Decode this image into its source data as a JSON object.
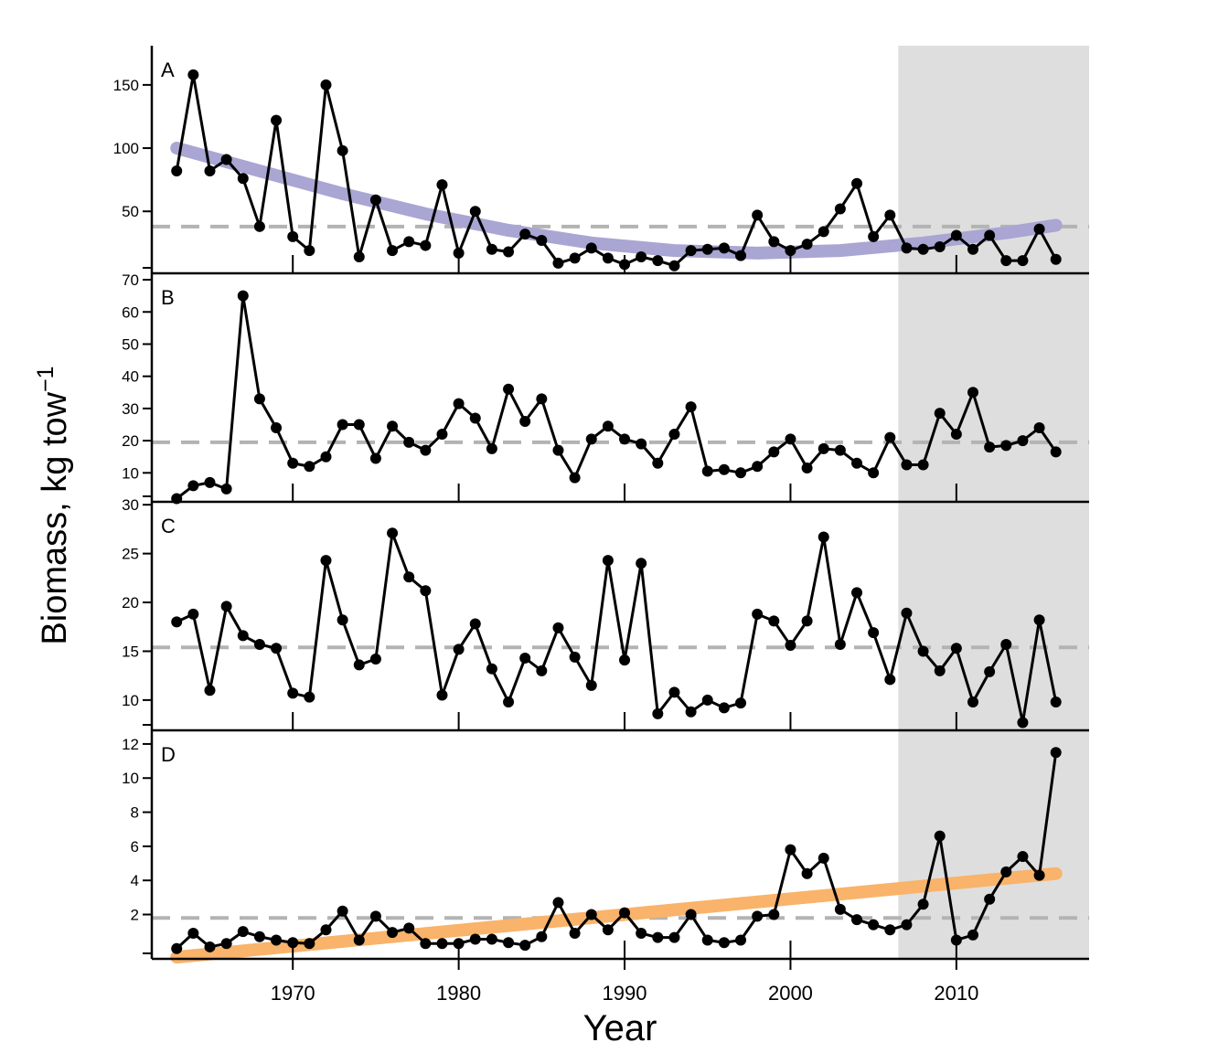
{
  "chart_data": {
    "type": "line",
    "xlabel": "Year",
    "ylabel": "Biomass, kg tow",
    "ylabel_superscript": "−1",
    "xlim": [
      1961.5,
      2018
    ],
    "x_ticks": [
      1970,
      1980,
      1990,
      2000,
      2010
    ],
    "shaded_region": {
      "x_start": 2006.5,
      "x_end": 2018,
      "color": "#dedede"
    },
    "colors": {
      "series": "#000000",
      "reference_line": "#b3b3b3",
      "trend_A": "#a9a6d3",
      "trend_D": "#f9b36a"
    },
    "grid": false,
    "years": [
      1963,
      1964,
      1965,
      1966,
      1967,
      1968,
      1969,
      1970,
      1971,
      1972,
      1973,
      1974,
      1975,
      1976,
      1977,
      1978,
      1979,
      1980,
      1981,
      1982,
      1983,
      1984,
      1985,
      1986,
      1987,
      1988,
      1989,
      1990,
      1991,
      1992,
      1993,
      1994,
      1995,
      1996,
      1997,
      1998,
      1999,
      2000,
      2001,
      2002,
      2003,
      2004,
      2005,
      2006,
      2007,
      2008,
      2009,
      2010,
      2011,
      2012,
      2013,
      2014,
      2015,
      2016
    ],
    "panels": [
      {
        "label": "A",
        "ylim": [
          1,
          181
        ],
        "y_ticks": [
          50,
          100,
          150
        ],
        "reference_value": 38,
        "values": [
          82,
          158,
          82,
          91,
          76,
          38,
          122,
          30,
          19,
          150,
          98,
          14,
          59,
          19,
          26,
          23,
          71,
          17,
          50,
          20,
          18,
          32,
          27,
          9,
          13,
          21,
          13,
          8,
          14,
          11,
          7,
          19,
          20,
          21,
          15,
          47,
          26,
          19,
          24,
          34,
          52,
          72,
          30,
          47,
          21,
          20,
          22,
          31,
          20,
          31,
          11,
          11,
          36,
          12
        ],
        "trend": {
          "color": "#a9a6d3",
          "x": [
            1963,
            1968,
            1973,
            1978,
            1983,
            1988,
            1993,
            1998,
            2003,
            2008,
            2013,
            2016
          ],
          "y": [
            100,
            82,
            64,
            48,
            35,
            25,
            19,
            17,
            19,
            25,
            33,
            39
          ]
        }
      },
      {
        "label": "B",
        "ylim": [
          1,
          72
        ],
        "y_ticks": [
          10,
          20,
          30,
          40,
          50,
          60,
          70
        ],
        "reference_value": 19.5,
        "values": [
          2,
          6,
          7,
          5,
          65,
          33,
          24,
          13,
          12,
          15,
          25,
          25,
          14.5,
          24.5,
          19.5,
          17,
          22,
          31.5,
          27,
          17.5,
          36,
          26,
          33,
          17,
          8.5,
          20.5,
          24.5,
          20.5,
          19,
          13,
          22,
          30.5,
          10.5,
          11,
          10,
          12,
          16.5,
          20.5,
          11.5,
          17.5,
          17,
          13,
          10,
          21,
          12.5,
          12.5,
          28.5,
          22,
          35,
          18,
          18.5,
          20,
          24,
          16.5
        ],
        "trend": null
      },
      {
        "label": "C",
        "ylim": [
          6.9,
          30.3
        ],
        "y_ticks": [
          10,
          15,
          20,
          25,
          30
        ],
        "reference_value": 15.4,
        "values": [
          18,
          18.8,
          11,
          19.6,
          16.6,
          15.7,
          15.3,
          10.7,
          10.3,
          24.3,
          18.2,
          13.6,
          14.2,
          27.1,
          22.6,
          21.2,
          10.5,
          15.2,
          17.8,
          13.2,
          9.8,
          14.3,
          13,
          17.4,
          14.4,
          11.5,
          24.3,
          14.1,
          24,
          8.6,
          10.8,
          8.8,
          10,
          9.2,
          9.7,
          18.8,
          18.1,
          15.6,
          18.1,
          26.7,
          15.7,
          21,
          16.9,
          12.1,
          18.9,
          15,
          13,
          15.3,
          9.8,
          12.9,
          15.7,
          7.7,
          18.2,
          9.8
        ]
      },
      {
        "label": "D",
        "ylim": [
          -0.6,
          12.8
        ],
        "y_ticks": [
          2,
          4,
          6,
          8,
          10,
          12
        ],
        "reference_value": 1.8,
        "values": [
          0,
          0.9,
          0.1,
          0.3,
          1.0,
          0.7,
          0.5,
          0.35,
          0.3,
          1.1,
          2.2,
          0.5,
          1.9,
          0.95,
          1.2,
          0.3,
          0.3,
          0.3,
          0.55,
          0.55,
          0.35,
          0.2,
          0.7,
          2.7,
          0.9,
          2.0,
          1.1,
          2.1,
          0.9,
          0.65,
          0.65,
          2.0,
          0.5,
          0.35,
          0.5,
          1.9,
          2.0,
          5.8,
          4.4,
          5.3,
          2.3,
          1.7,
          1.4,
          1.1,
          1.4,
          2.6,
          6.6,
          0.5,
          0.8,
          2.9,
          4.5,
          5.4,
          4.3,
          11.5
        ],
        "trend": {
          "color": "#f9b36a",
          "x": [
            1963,
            2016
          ],
          "y": [
            -0.5,
            4.4
          ]
        }
      }
    ]
  }
}
